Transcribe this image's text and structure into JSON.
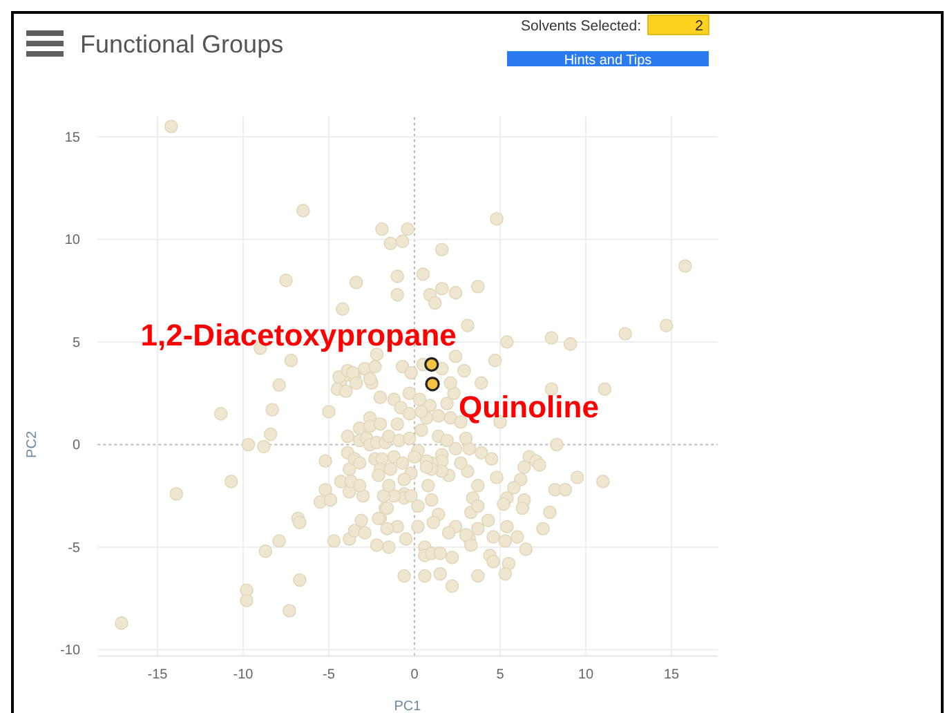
{
  "chart_data": {
    "type": "scatter",
    "title": "Functional Groups",
    "xlabel": "PC1",
    "ylabel": "PC2",
    "annotations": [
      "Solvents Selected:",
      "2",
      "Hints and Tips",
      {
        "text": "1,2-Diacetoxypropane",
        "x": 1.0,
        "y": 3.9
      },
      {
        "text": "Quinoline",
        "x": 1.05,
        "y": 2.95
      }
    ],
    "xlim": [
      -18.5,
      17.7
    ],
    "ylim": [
      -10.3,
      16
    ],
    "xticks": [
      -15,
      -10,
      -5,
      0,
      5,
      10,
      15
    ],
    "yticks": [
      -10,
      -5,
      0,
      5,
      10,
      15
    ],
    "grid": true,
    "marker": "circle",
    "series": [
      {
        "color": "#efe6cf",
        "x": [
          -14.2,
          -6.5,
          -1.9,
          -0.4,
          -1.4,
          -0.7,
          4.8,
          1.6,
          -1.0,
          -1.0,
          0.5,
          1.6,
          0.9,
          1.2,
          2.4,
          3.7,
          3.1,
          5.4,
          8.0,
          9.1,
          12.3,
          14.7,
          15.8,
          2.4,
          2.9,
          4.7,
          -0.7,
          -0.2,
          0.5,
          1.6,
          -7.5,
          -3.4,
          -4.2,
          -9.0,
          -7.2,
          -7.9,
          -4.3,
          -3.9,
          -3.5,
          -2.9,
          -2.3,
          -2.5,
          -2.2,
          -11.3,
          -8.3,
          -8.4,
          -9.7,
          -8.8,
          -10.7,
          -13.9,
          -17.1,
          -9.8,
          -9.8,
          -8.7,
          -7.9,
          -6.8,
          -6.7,
          -6.7,
          -7.3,
          -5.0,
          -5.2,
          -5.2,
          -5.5,
          -4.9,
          -4.7,
          -3.8,
          -3.5,
          -2.9,
          -3.1,
          -3.0,
          -3.8,
          -4.3,
          -3.7,
          -3.8,
          -3.2,
          -3.9,
          -3.5,
          -3.2,
          -3.9,
          -3.2,
          -2.6,
          -2.6,
          -2.0,
          -3.2,
          -2.8,
          -2.6,
          -2.2,
          -2.3,
          -1.9,
          -2.0,
          -1.7,
          -4.5,
          -4.0,
          -4.4,
          -3.9,
          -3.6,
          -3.4,
          -2.6,
          -2.0,
          -2.0,
          -1.7,
          8.3,
          9.5,
          11.0,
          8.2,
          8.8,
          6.7,
          7.1,
          7.3,
          6.4,
          6.2,
          4.8,
          5.8,
          5.4,
          5.2,
          6.4,
          6.3,
          7.9,
          7.5,
          6.5,
          6.0,
          5.4,
          5.3,
          5.5,
          5.3,
          4.6,
          4.4,
          4.6,
          3.7,
          4.3,
          3.7,
          3.2,
          3.3,
          3.0,
          3.3,
          3.4,
          3.7,
          3.7,
          2.4,
          2.0,
          2.2,
          2.2,
          1.5,
          0.6,
          -0.6,
          0.6,
          0.6,
          1.0,
          1.5,
          1.4,
          1.1,
          1.0,
          0.8,
          2.0,
          3.1,
          2.7,
          3.9,
          4.5,
          3.2,
          2.4,
          3.0,
          1.6,
          1.6,
          1.6,
          1.0,
          1.0,
          0.7,
          0.7,
          -0.2,
          -0.6,
          -0.6,
          -0.6,
          -1.2,
          -1.8,
          -1.6,
          -2.1,
          -1.5,
          -2.1,
          11.1,
          8.0,
          5.0,
          3.9,
          2.3,
          2.1,
          1.9,
          1.4,
          2.1,
          2.7,
          0.9,
          0.7,
          0.4,
          1.4,
          1.9,
          -1.2,
          -0.8,
          -0.3,
          0.3,
          -1.5,
          -0.9,
          -0.3,
          0.2,
          -1.2,
          -0.7,
          0.0,
          -1.0,
          -0.3,
          0.4,
          -1.4,
          -0.2,
          0.2,
          -1.0,
          -0.5,
          0.2,
          -1.5,
          -2.2,
          -1.6
        ],
        "values": [
          15.5,
          11.4,
          10.5,
          10.5,
          9.8,
          9.9,
          11.0,
          9.5,
          8.2,
          7.3,
          8.3,
          7.6,
          7.3,
          6.9,
          7.4,
          7.7,
          5.8,
          5.0,
          5.2,
          4.9,
          5.4,
          5.8,
          8.7,
          4.3,
          3.6,
          4.1,
          3.8,
          3.5,
          3.9,
          3.7,
          8.0,
          7.9,
          6.6,
          4.7,
          4.1,
          2.9,
          3.1,
          3.4,
          3.3,
          3.7,
          3.8,
          3.0,
          4.4,
          1.5,
          1.7,
          0.5,
          0.0,
          -0.1,
          -1.8,
          -2.4,
          -8.7,
          -7.1,
          -7.6,
          -5.2,
          -4.7,
          -3.6,
          -3.8,
          -6.6,
          -8.1,
          1.6,
          -0.8,
          -2.2,
          -2.8,
          -2.7,
          -4.7,
          -4.6,
          -4.2,
          -4.3,
          -3.7,
          -2.5,
          -2.3,
          -1.8,
          -1.8,
          -1.2,
          -2.0,
          -0.4,
          -0.7,
          -0.9,
          0.4,
          0.8,
          1.3,
          0.9,
          1.0,
          0.2,
          0.3,
          0.0,
          0.1,
          -0.7,
          -0.7,
          -1.2,
          0.1,
          2.7,
          2.6,
          3.3,
          3.6,
          3.5,
          3.0,
          3.2,
          2.3,
          -3.6,
          -3.1,
          0.0,
          -1.6,
          -1.8,
          -2.2,
          -2.2,
          -0.6,
          -0.8,
          -1.0,
          -1.1,
          -1.7,
          -1.6,
          -2.1,
          -2.6,
          -2.9,
          -2.7,
          -3.1,
          -3.3,
          -4.1,
          -5.1,
          -4.5,
          -4.0,
          -4.7,
          -5.8,
          -6.3,
          -4.5,
          -5.4,
          -5.7,
          -6.4,
          -3.7,
          -4.1,
          -4.6,
          -4.9,
          -4.4,
          -3.3,
          -2.6,
          -3.0,
          -2.0,
          -4.0,
          -4.3,
          -5.5,
          -6.9,
          -6.3,
          -6.4,
          -6.4,
          -5.0,
          -5.4,
          -5.3,
          -5.3,
          -3.4,
          -3.8,
          -2.7,
          -2.0,
          -1.5,
          -1.3,
          -0.9,
          -0.4,
          -0.7,
          -0.2,
          -0.2,
          0.3,
          -0.5,
          -0.8,
          -1.3,
          -0.9,
          -1.2,
          -0.8,
          -1.1,
          -1.4,
          -1.7,
          -2.4,
          -2.6,
          -2.5,
          -2.5,
          -3.1,
          -3.6,
          -2.0,
          -1.5,
          2.7,
          2.7,
          1.1,
          3.0,
          2.5,
          3.0,
          2.0,
          1.4,
          1.3,
          1.1,
          1.9,
          1.3,
          0.7,
          0.4,
          0.2,
          2.2,
          1.8,
          2.5,
          2.2,
          0.4,
          0.2,
          0.3,
          -0.3,
          -0.6,
          -0.9,
          -0.6,
          1.0,
          1.5,
          1.6,
          -1.2,
          -2.5,
          -3.0,
          -4.0,
          -4.6,
          -4.0,
          -5.0,
          -4.9,
          -4.1
        ]
      },
      {
        "color": "#f5c242",
        "x": [
          1.0,
          1.05
        ],
        "values": [
          3.9,
          2.95
        ]
      }
    ]
  }
}
